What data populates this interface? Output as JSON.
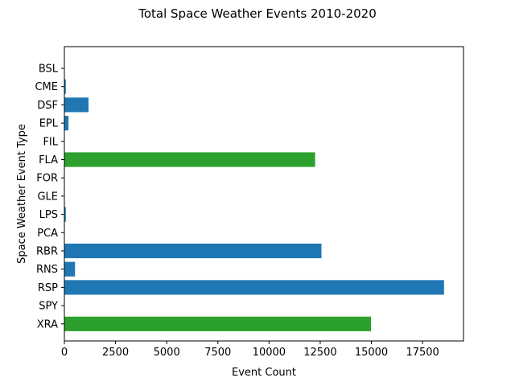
{
  "chart_data": {
    "type": "bar",
    "orientation": "horizontal",
    "title": "Total Space Weather Events 2010-2020",
    "xlabel": "Event Count",
    "ylabel": "Space Weather Event Type",
    "xlim": [
      0,
      19500
    ],
    "xticks": [
      0,
      2500,
      5000,
      7500,
      10000,
      12500,
      15000,
      17500
    ],
    "xtick_labels": [
      "0",
      "2500",
      "5000",
      "7500",
      "10000",
      "12500",
      "15000",
      "17500"
    ],
    "grid": false,
    "categories": [
      "BSL",
      "CME",
      "DSF",
      "EPL",
      "FIL",
      "FLA",
      "FOR",
      "GLE",
      "LPS",
      "PCA",
      "RBR",
      "RNS",
      "RSP",
      "SPY",
      "XRA"
    ],
    "values": [
      5,
      70,
      1180,
      200,
      10,
      12250,
      15,
      10,
      70,
      15,
      12560,
      520,
      18550,
      15,
      14980
    ],
    "colors": [
      "#1f77b4",
      "#1f77b4",
      "#1f77b4",
      "#1f77b4",
      "#1f77b4",
      "#2ca02c",
      "#1f77b4",
      "#1f77b4",
      "#1f77b4",
      "#1f77b4",
      "#1f77b4",
      "#1f77b4",
      "#1f77b4",
      "#1f77b4",
      "#2ca02c"
    ]
  }
}
